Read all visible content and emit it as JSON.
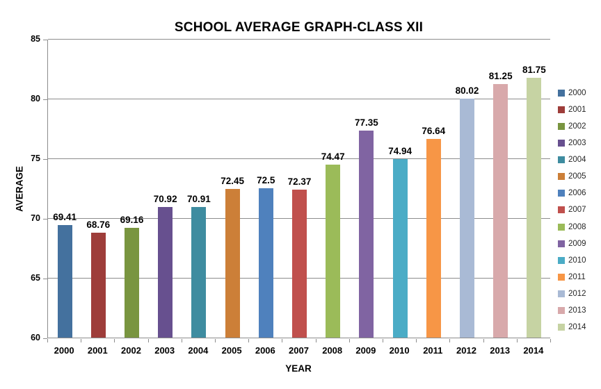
{
  "chart_data": {
    "type": "bar",
    "title": "SCHOOL AVERAGE GRAPH-CLASS XII",
    "xlabel": "YEAR",
    "ylabel": "AVERAGE",
    "ylim": [
      60,
      85
    ],
    "yticks": [
      60,
      65,
      70,
      75,
      80,
      85
    ],
    "grid": true,
    "legend_position": "right",
    "categories": [
      "2000",
      "2001",
      "2002",
      "2003",
      "2004",
      "2005",
      "2006",
      "2007",
      "2008",
      "2009",
      "2010",
      "2011",
      "2012",
      "2013",
      "2014"
    ],
    "values": [
      69.41,
      68.76,
      69.16,
      70.92,
      70.91,
      72.45,
      72.5,
      72.37,
      74.47,
      77.35,
      74.94,
      76.64,
      80.02,
      81.25,
      81.75
    ],
    "value_labels": [
      "69.41",
      "68.76",
      "69.16",
      "70.92",
      "70.91",
      "72.45",
      "72.5",
      "72.37",
      "74.47",
      "77.35",
      "74.94",
      "76.64",
      "80.02",
      "81.25",
      "81.75"
    ],
    "bar_colors": [
      "#44719E",
      "#9E3D3A",
      "#799540",
      "#67508F",
      "#3E8CA0",
      "#CC7F38",
      "#4F81BD",
      "#C0504D",
      "#9BBB59",
      "#8064A2",
      "#4BACC6",
      "#F79646",
      "#A9BAD5",
      "#D8A9AB",
      "#C6D3A3"
    ],
    "legend_entries": [
      "2000",
      "2001",
      "2002",
      "2003",
      "2004",
      "2005",
      "2006",
      "2007",
      "2008",
      "2009",
      "2010",
      "2011",
      "2012",
      "2013",
      "2014"
    ]
  },
  "style_colors": {
    "axis": "#8C8C8C",
    "gridline": "#8C8C8C",
    "title_text": "#000000",
    "label_text": "#000000",
    "legend_text": "#262626",
    "background": "#FFFFFF"
  }
}
